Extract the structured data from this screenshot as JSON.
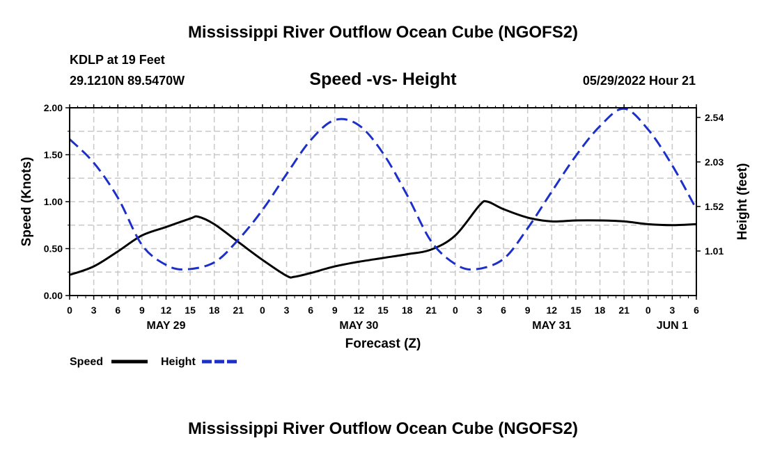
{
  "page": {
    "title_top": "Mississippi River Outflow Ocean Cube (NGOFS2)",
    "title_bottom": "Mississippi River Outflow Ocean Cube (NGOFS2)",
    "station": "KDLP at 19 Feet",
    "coords": "29.1210N  89.5470W",
    "datetime": "05/29/2022 Hour 21"
  },
  "chart_data": {
    "type": "line",
    "title": "Speed -vs- Height",
    "xlabel": "Forecast (Z)",
    "ylabel": "Speed (Knots)",
    "y2label": "Height (feet)",
    "x_range": [
      0,
      78
    ],
    "ylim": [
      0,
      2
    ],
    "y2lim": [
      0.5,
      2.65
    ],
    "grid": true,
    "xtick_values": [
      0,
      3,
      6,
      9,
      12,
      15,
      18,
      21,
      24,
      27,
      30,
      33,
      36,
      39,
      42,
      45,
      48,
      51,
      54,
      57,
      60,
      63,
      66,
      69,
      72,
      75,
      78
    ],
    "xtick_labels": [
      "0",
      "3",
      "6",
      "9",
      "12",
      "15",
      "18",
      "21",
      "0",
      "3",
      "6",
      "9",
      "12",
      "15",
      "18",
      "21",
      "0",
      "3",
      "6",
      "9",
      "12",
      "15",
      "18",
      "21",
      "0",
      "3",
      "6"
    ],
    "ytick_labels": [
      "0.00",
      "0.50",
      "1.00",
      "1.50",
      "2.00"
    ],
    "ytick_values": [
      0,
      0.5,
      1.0,
      1.5,
      2.0
    ],
    "y2tick_labels": [
      "1.01",
      "1.52",
      "2.03",
      "2.54"
    ],
    "y2tick_values": [
      1.01,
      1.52,
      2.03,
      2.54
    ],
    "date_labels": [
      {
        "label": "MAY 29",
        "x": 12
      },
      {
        "label": "MAY 30",
        "x": 36
      },
      {
        "label": "MAY 31",
        "x": 60
      },
      {
        "label": "JUN 1",
        "x": 75
      }
    ],
    "legend": [
      {
        "name": "Speed",
        "color": "#000000",
        "style": "solid"
      },
      {
        "name": "Height",
        "color": "#1c2fc9",
        "style": "dashed"
      }
    ],
    "series": [
      {
        "name": "Speed",
        "axis": "left",
        "color": "#000000",
        "x": [
          0,
          3,
          6,
          9,
          12,
          15,
          16,
          18,
          21,
          24,
          27,
          28,
          30,
          33,
          36,
          39,
          42,
          45,
          48,
          51,
          52,
          54,
          57,
          60,
          63,
          66,
          69,
          72,
          75,
          78
        ],
        "values": [
          0.22,
          0.31,
          0.47,
          0.64,
          0.73,
          0.82,
          0.84,
          0.76,
          0.57,
          0.38,
          0.21,
          0.2,
          0.24,
          0.31,
          0.36,
          0.4,
          0.44,
          0.49,
          0.64,
          0.96,
          1.0,
          0.92,
          0.83,
          0.79,
          0.8,
          0.8,
          0.79,
          0.76,
          0.75,
          0.76
        ]
      },
      {
        "name": "Height",
        "axis": "right",
        "color": "#1c2fc9",
        "x": [
          0,
          3,
          6,
          9,
          12,
          14.5,
          18,
          21,
          24,
          27,
          30,
          33,
          36,
          39,
          42,
          45,
          48,
          50.5,
          54,
          57,
          60,
          63,
          66,
          69,
          72,
          75,
          78
        ],
        "values": [
          2.29,
          2.02,
          1.62,
          1.08,
          0.85,
          0.8,
          0.88,
          1.14,
          1.48,
          1.89,
          2.28,
          2.51,
          2.45,
          2.13,
          1.65,
          1.12,
          0.86,
          0.8,
          0.92,
          1.27,
          1.69,
          2.1,
          2.44,
          2.64,
          2.4,
          1.99,
          1.49
        ]
      }
    ]
  }
}
